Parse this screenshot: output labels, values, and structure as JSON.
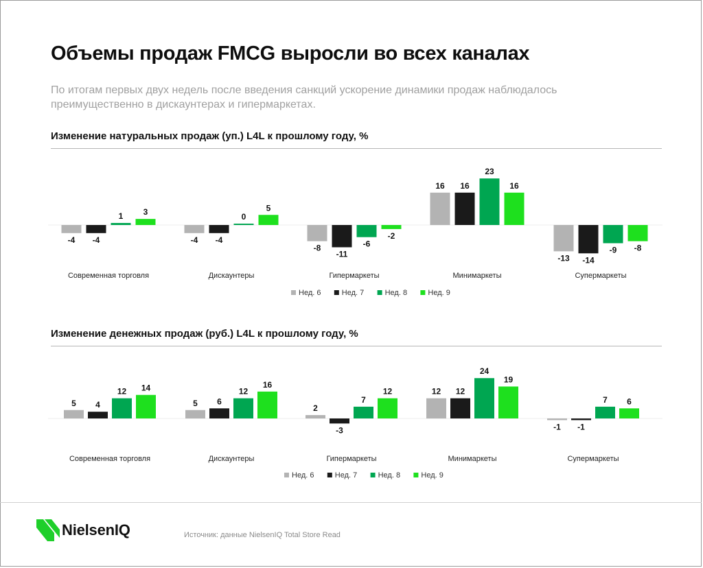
{
  "page": {
    "title": "Объемы продаж FMCG выросли во всех каналах",
    "subtitle": "По итогам первых двух недель после введения санкций ускорение динамики продаж наблюдалось преимущественно в дискаунтерах и гипермаркетах.",
    "source": "Источник:  данные NielsenIQ Total Store Read",
    "logo_text": "NielsenIQ",
    "logo_icon": "nielseniq-logo-icon"
  },
  "colors": {
    "week6": "#b3b3b3",
    "week7": "#1a1a1a",
    "week8": "#00a651",
    "week9": "#1ee01e",
    "logo_green": "#1ecf2a"
  },
  "chart_data": [
    {
      "type": "bar",
      "title": "Изменение натуральных продаж (уп.) L4L к прошлому году, %",
      "categories": [
        "Современная торговля",
        "Дискаунтеры",
        "Гипермаркеты",
        "Минимаркеты",
        "Супермаркеты"
      ],
      "series": [
        {
          "name": "Нед. 6",
          "values": [
            -4,
            -4,
            -8,
            16,
            -13
          ]
        },
        {
          "name": "Нед. 7",
          "values": [
            -4,
            -4,
            -11,
            16,
            -14
          ]
        },
        {
          "name": "Нед. 8",
          "values": [
            1,
            0,
            -6,
            23,
            -9
          ]
        },
        {
          "name": "Нед. 9",
          "values": [
            3,
            5,
            -2,
            16,
            -8
          ]
        }
      ],
      "legend": "bottom",
      "grid": false
    },
    {
      "type": "bar",
      "title": "Изменение денежных продаж (руб.) L4L к прошлому году, %",
      "categories": [
        "Современная торговля",
        "Дискаунтеры",
        "Гипермаркеты",
        "Минимаркеты",
        "Супермаркеты"
      ],
      "series": [
        {
          "name": "Нед. 6",
          "values": [
            5,
            5,
            2,
            12,
            -1
          ]
        },
        {
          "name": "Нед. 7",
          "values": [
            4,
            6,
            -3,
            12,
            -1
          ]
        },
        {
          "name": "Нед. 8",
          "values": [
            12,
            12,
            7,
            24,
            7
          ]
        },
        {
          "name": "Нед. 9",
          "values": [
            14,
            16,
            12,
            19,
            6
          ]
        }
      ],
      "legend": "bottom",
      "grid": false
    }
  ]
}
